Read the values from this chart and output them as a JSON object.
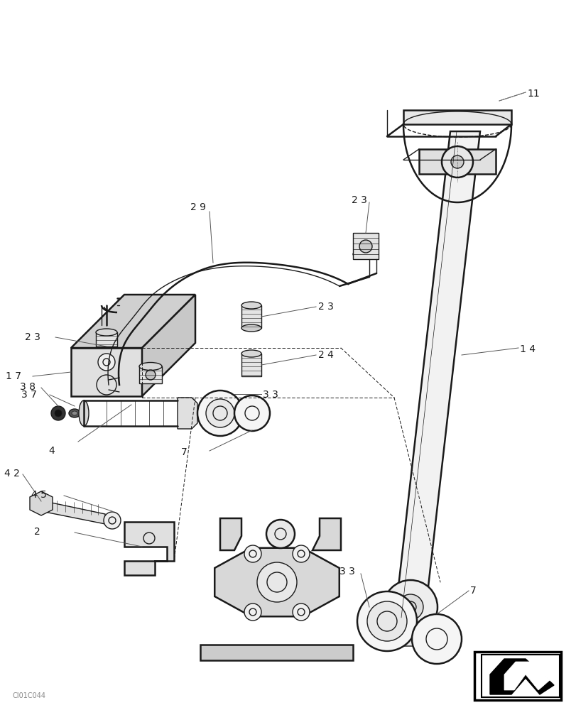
{
  "bg_color": "#ffffff",
  "line_color": "#1a1a1a",
  "lw": 1.0,
  "lw_thick": 1.8,
  "watermark": "CI01C044",
  "fig_w": 8.12,
  "fig_h": 10.0,
  "dpi": 100
}
